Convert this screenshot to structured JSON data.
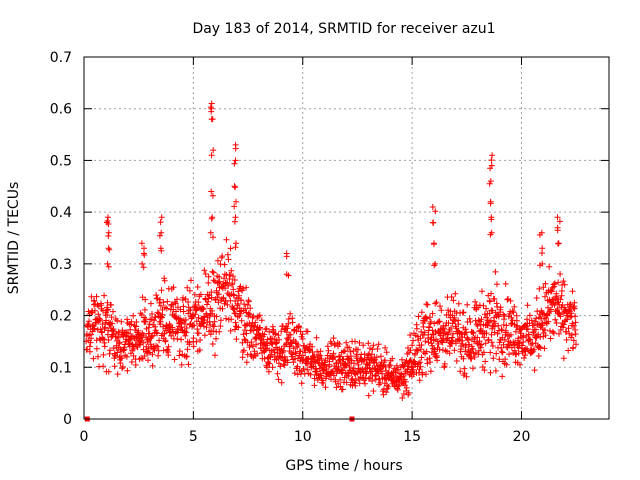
{
  "chart_data": {
    "type": "scatter",
    "title": "Day 183 of 2014, SRMTID for receiver azu1",
    "xlabel": "GPS time / hours",
    "ylabel": "SRMTID / TECUs",
    "xlim": [
      0,
      24
    ],
    "ylim": [
      0,
      0.7
    ],
    "x_ticks": [
      0,
      5,
      10,
      15,
      20
    ],
    "x_tick_labels": [
      "0",
      "5",
      "10",
      "15",
      "20"
    ],
    "y_ticks": [
      0,
      0.1,
      0.2,
      0.3,
      0.4,
      0.5,
      0.6,
      0.7
    ],
    "y_tick_labels": [
      "0",
      "0.1",
      "0.2",
      "0.3",
      "0.4",
      "0.5",
      "0.6",
      "0.7"
    ],
    "grid": true,
    "marker": "plus",
    "marker_color": "#ff0000",
    "profile": {
      "x": [
        0.1,
        0.5,
        1.0,
        1.5,
        2.0,
        2.5,
        3.0,
        3.5,
        4.0,
        4.5,
        5.0,
        5.5,
        6.0,
        6.5,
        7.0,
        7.5,
        8.0,
        8.5,
        9.0,
        9.5,
        10.0,
        10.5,
        11.0,
        11.5,
        12.0,
        12.5,
        13.0,
        13.5,
        14.0,
        14.5,
        15.0,
        15.5,
        16.0,
        16.5,
        17.0,
        17.5,
        18.0,
        18.5,
        19.0,
        19.5,
        20.0,
        20.5,
        21.0,
        21.5,
        22.0,
        22.5
      ],
      "median": [
        0.15,
        0.19,
        0.18,
        0.15,
        0.14,
        0.15,
        0.17,
        0.18,
        0.19,
        0.18,
        0.2,
        0.2,
        0.22,
        0.25,
        0.22,
        0.18,
        0.16,
        0.14,
        0.13,
        0.15,
        0.12,
        0.11,
        0.1,
        0.11,
        0.1,
        0.11,
        0.1,
        0.1,
        0.08,
        0.08,
        0.11,
        0.15,
        0.17,
        0.16,
        0.17,
        0.15,
        0.17,
        0.18,
        0.19,
        0.17,
        0.16,
        0.15,
        0.2,
        0.22,
        0.2,
        0.18
      ],
      "spread": [
        0.06,
        0.07,
        0.09,
        0.06,
        0.05,
        0.07,
        0.08,
        0.09,
        0.08,
        0.08,
        0.08,
        0.08,
        0.12,
        0.11,
        0.1,
        0.07,
        0.06,
        0.06,
        0.06,
        0.07,
        0.05,
        0.05,
        0.04,
        0.05,
        0.05,
        0.05,
        0.05,
        0.05,
        0.04,
        0.04,
        0.06,
        0.08,
        0.08,
        0.07,
        0.07,
        0.07,
        0.07,
        0.09,
        0.1,
        0.07,
        0.06,
        0.06,
        0.08,
        0.08,
        0.07,
        0.07
      ]
    },
    "spikes": [
      {
        "x": 1.1,
        "y": [
          0.3,
          0.33,
          0.36,
          0.38,
          0.39
        ]
      },
      {
        "x": 2.7,
        "y": [
          0.3,
          0.32,
          0.34
        ]
      },
      {
        "x": 3.5,
        "y": [
          0.33,
          0.36,
          0.39
        ]
      },
      {
        "x": 5.85,
        "y": [
          0.36,
          0.39,
          0.44,
          0.52,
          0.58,
          0.6,
          0.61
        ]
      },
      {
        "x": 6.9,
        "y": [
          0.34,
          0.39,
          0.42,
          0.45,
          0.5,
          0.53
        ]
      },
      {
        "x": 9.3,
        "y": [
          0.28,
          0.32
        ]
      },
      {
        "x": 16.0,
        "y": [
          0.3,
          0.34,
          0.38,
          0.41
        ]
      },
      {
        "x": 18.6,
        "y": [
          0.36,
          0.39,
          0.42,
          0.46,
          0.49,
          0.51
        ]
      },
      {
        "x": 20.9,
        "y": [
          0.3,
          0.33,
          0.36
        ]
      },
      {
        "x": 21.7,
        "y": [
          0.34,
          0.37,
          0.39
        ]
      }
    ],
    "zero_markers": [
      0.15,
      12.25
    ]
  }
}
